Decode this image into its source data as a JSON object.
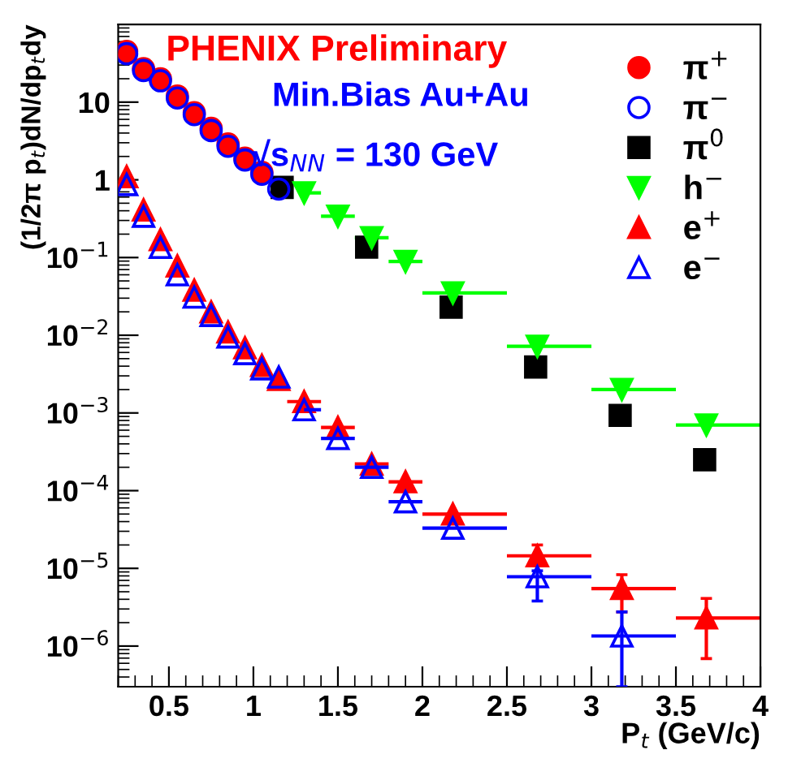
{
  "chart_data": {
    "type": "scatter",
    "title": "PHENIX Preliminary",
    "xlabel": "P$_{t}$ (GeV/c)",
    "ylabel": "(1/2π p$_{t}$)dN/dp$_{t}$dy",
    "annotations": [
      "Min.Bias Au+Au",
      "√s$_{NN}$ = 130 GeV"
    ],
    "log": "y",
    "xlim": [
      0.2,
      4
    ],
    "xticks": [
      0.5,
      1,
      1.5,
      2,
      2.5,
      3,
      3.5,
      4
    ],
    "ylim": [
      3e-07,
      100
    ],
    "yticks": [
      {
        "value": 1e-06,
        "label": "10$^{−6}$"
      },
      {
        "value": 1e-05,
        "label": "10$^{−5}$"
      },
      {
        "value": 0.0001,
        "label": "10$^{−4}$"
      },
      {
        "value": 0.001,
        "label": "10$^{−3}$"
      },
      {
        "value": 0.01,
        "label": "10$^{−2}$"
      },
      {
        "value": 0.1,
        "label": "10$^{−1}$"
      },
      1,
      10
    ],
    "grid": false,
    "legend": "top right",
    "series": [
      {
        "name": "π$^{+}$",
        "color": "#ff0000",
        "marker": "circle",
        "x": [
          0.25,
          0.35,
          0.45,
          0.55,
          0.65,
          0.75,
          0.85,
          0.95,
          1.05
        ],
        "values": [
          45,
          27,
          20,
          12,
          7.3,
          4.6,
          2.9,
          1.9,
          1.25
        ]
      },
      {
        "name": "π$^{−}$",
        "color": "#0000ff",
        "marker": "circle",
        "x": [
          0.25,
          0.35,
          0.45,
          0.55,
          0.65,
          0.75,
          0.85,
          0.95,
          1.05,
          1.15
        ],
        "values": [
          42,
          25.5,
          18.8,
          11.3,
          6.9,
          4.3,
          2.7,
          1.8,
          1.18,
          0.76
        ]
      },
      {
        "name": "π$^{0}$",
        "color": "#000000",
        "marker": "square",
        "x": [
          1.17,
          1.67,
          2.17,
          2.67,
          3.17,
          3.67
        ],
        "values": [
          0.8,
          0.136,
          0.023,
          0.0039,
          0.00093,
          0.00025
        ]
      },
      {
        "name": "h$^{−}$",
        "color": "#00ff00",
        "marker": "triangle-down",
        "x": [
          1.3,
          1.5,
          1.7,
          1.9,
          2.18,
          2.68,
          3.18,
          3.68
        ],
        "values": [
          0.68,
          0.34,
          0.18,
          0.089,
          0.035,
          0.0072,
          0.002,
          0.0007
        ],
        "xerrors": [
          [
            1.3,
            1.4
          ],
          [
            1.4,
            1.6
          ],
          [
            1.6,
            1.8
          ],
          [
            1.8,
            2.0
          ],
          [
            2.0,
            2.5
          ],
          [
            2.5,
            3.0
          ],
          [
            3.0,
            3.5
          ],
          [
            3.5,
            4.0
          ]
        ]
      },
      {
        "name": "e$^{+}$",
        "color": "#ff0000",
        "marker": "triangle",
        "x": [
          0.25,
          0.35,
          0.45,
          0.55,
          0.65,
          0.75,
          0.85,
          0.95,
          1.05,
          1.15,
          1.3,
          1.5,
          1.7,
          1.9,
          2.18,
          2.68,
          3.18,
          3.68
        ],
        "values": [
          1.1,
          0.41,
          0.17,
          0.078,
          0.038,
          0.02,
          0.011,
          0.0069,
          0.0041,
          0.0027,
          0.0014,
          0.00065,
          0.00022,
          0.00013,
          5e-05,
          1.45e-05,
          5.5e-06,
          2.3e-06
        ],
        "xerrors": [
          null,
          null,
          null,
          null,
          null,
          null,
          null,
          null,
          null,
          null,
          [
            1.2,
            1.4
          ],
          [
            1.4,
            1.6
          ],
          [
            1.6,
            1.8
          ],
          [
            1.8,
            2.0
          ],
          [
            2.0,
            2.5
          ],
          [
            2.5,
            3.0
          ],
          [
            3.0,
            3.5
          ],
          [
            3.5,
            4.0
          ]
        ],
        "errors": [
          null,
          null,
          null,
          null,
          null,
          null,
          null,
          null,
          null,
          null,
          null,
          null,
          null,
          null,
          null,
          [
            1.15e-05,
            2e-05
          ],
          [
            2.75e-06,
            8.3e-06
          ],
          [
            6.9e-07,
            4.1e-06
          ]
        ]
      },
      {
        "name": "e$^{−}$",
        "color": "#0000ff",
        "marker": "triangle",
        "x": [
          0.25,
          0.35,
          0.45,
          0.55,
          0.65,
          0.75,
          0.85,
          0.95,
          1.05,
          1.15,
          1.3,
          1.5,
          1.7,
          1.9,
          2.18,
          2.68,
          3.18
        ],
        "values": [
          0.87,
          0.34,
          0.135,
          0.06,
          0.031,
          0.018,
          0.0095,
          0.0058,
          0.0037,
          0.0029,
          0.0011,
          0.00047,
          0.0002,
          7.2e-05,
          3.3e-05,
          7.8e-06,
          1.35e-06
        ],
        "xerrors": [
          null,
          null,
          null,
          null,
          null,
          null,
          null,
          null,
          null,
          null,
          [
            1.3,
            1.4
          ],
          [
            1.4,
            1.6
          ],
          [
            1.6,
            1.8
          ],
          [
            1.8,
            2.0
          ],
          [
            2.0,
            2.5
          ],
          [
            2.5,
            3.0
          ],
          [
            3.0,
            3.5
          ]
        ],
        "errors": [
          null,
          null,
          null,
          null,
          null,
          null,
          null,
          null,
          null,
          null,
          null,
          null,
          null,
          null,
          null,
          [
            3.8e-06,
            9.3e-06
          ],
          [
            3e-07,
            2.75e-06
          ]
        ]
      }
    ]
  }
}
